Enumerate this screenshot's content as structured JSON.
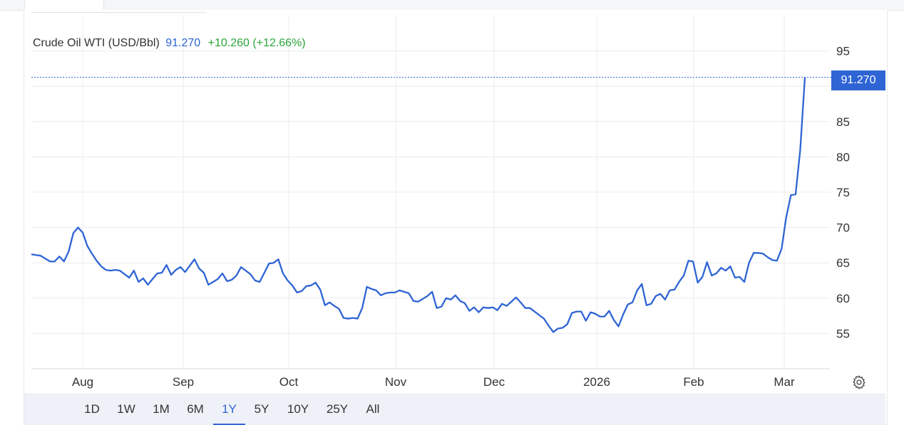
{
  "legend": {
    "name": "Crude Oil WTI (USD/Bbl)",
    "value": "91.270",
    "change": "+10.260 (+12.66%)"
  },
  "last_price_label": "91.270",
  "range_buttons": [
    "1D",
    "1W",
    "1M",
    "6M",
    "1Y",
    "5Y",
    "10Y",
    "25Y",
    "All"
  ],
  "active_range": "1Y",
  "settings_icon": "gear-icon",
  "colors": {
    "line": "#2e64d4",
    "change": "#2ba53a",
    "grid": "#e9ecef"
  },
  "chart_data": {
    "type": "line",
    "x_tick_labels": [
      "Aug",
      "Sep",
      "Oct",
      "Nov",
      "Dec",
      "2026",
      "Feb",
      "Mar"
    ],
    "y_ticks": [
      55,
      60,
      65,
      70,
      75,
      80,
      85,
      95
    ],
    "ylim": [
      50,
      100
    ],
    "series": [
      {
        "values": [
          66.2,
          66.1,
          66.0,
          65.6,
          65.2,
          65.2,
          65.9,
          65.2,
          66.6,
          69.2,
          70.0,
          69.3,
          67.4,
          66.3,
          65.3,
          64.5,
          64.0,
          63.9,
          64.0,
          63.9,
          63.4,
          62.9,
          63.9,
          62.3,
          62.8,
          61.9,
          62.7,
          63.5,
          63.6,
          64.7,
          63.3,
          64.0,
          64.4,
          63.7,
          64.6,
          65.5,
          64.2,
          63.6,
          61.9,
          62.3,
          62.7,
          63.5,
          62.4,
          62.6,
          63.2,
          64.4,
          63.9,
          63.4,
          62.5,
          62.3,
          63.6,
          64.9,
          65.0,
          65.5,
          63.5,
          62.5,
          61.8,
          60.8,
          61.0,
          61.7,
          61.8,
          62.2,
          61.2,
          59.0,
          59.4,
          58.9,
          58.5,
          57.2,
          57.1,
          57.2,
          57.1,
          58.6,
          61.6,
          61.3,
          61.1,
          60.4,
          60.7,
          60.8,
          60.8,
          61.1,
          60.9,
          60.7,
          59.6,
          59.5,
          59.9,
          60.3,
          60.9,
          58.6,
          58.8,
          60.0,
          59.8,
          60.4,
          59.6,
          59.3,
          58.2,
          58.7,
          58.0,
          58.7,
          58.6,
          58.7,
          58.3,
          59.2,
          58.9,
          59.5,
          60.1,
          59.4,
          58.6,
          58.6,
          58.1,
          57.6,
          57.1,
          56.1,
          55.2,
          55.7,
          55.8,
          56.3,
          57.9,
          58.1,
          58.1,
          56.8,
          58.0,
          57.8,
          57.4,
          57.4,
          58.2,
          56.9,
          56.0,
          57.7,
          59.1,
          59.4,
          61.1,
          62.0,
          59.0,
          59.2,
          60.3,
          60.6,
          59.8,
          61.1,
          61.2,
          62.3,
          63.2,
          65.3,
          65.2,
          62.2,
          63.0,
          65.1,
          63.2,
          63.5,
          64.3,
          63.9,
          64.5,
          62.9,
          63.0,
          62.3,
          65.0,
          66.4,
          66.4,
          66.3,
          65.8,
          65.4,
          65.3,
          67.0,
          71.5,
          74.6,
          74.7,
          81.0,
          91.27
        ]
      }
    ]
  }
}
